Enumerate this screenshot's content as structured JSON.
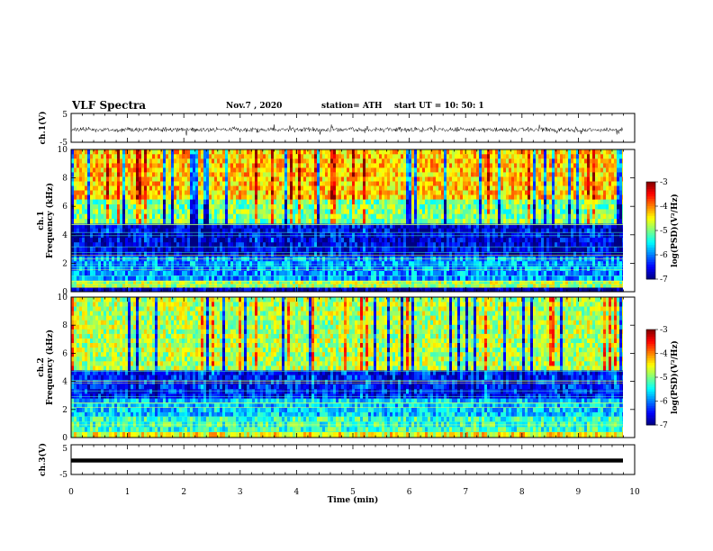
{
  "header": {
    "title": "VLF Spectra",
    "date": "Nov.7 , 2020",
    "station": "station= ATH",
    "start": "start UT = 10: 50: 1"
  },
  "chart_data": [
    {
      "type": "line",
      "panel": "ch1-waveform",
      "ylabel": "ch.1(V)",
      "ylim": [
        -5,
        5
      ],
      "yticks": [
        "5",
        "-5"
      ],
      "xlim": [
        0,
        10
      ],
      "description_values": {
        "baseline": 0,
        "noise_amplitude": 1.2,
        "end_min": 9.85
      }
    },
    {
      "type": "heatmap",
      "panel": "ch1-spectrogram",
      "ylabel": "ch.1\nFrequency (kHz)",
      "ylabel_lines": [
        "ch.1",
        "Frequency (kHz)"
      ],
      "ylim": [
        0,
        10
      ],
      "yticks": [
        "0",
        "2",
        "4",
        "6",
        "8",
        "10"
      ],
      "xlim": [
        0,
        9.85
      ],
      "colorbar": {
        "label": "log(PSD)(V²/Hz)",
        "range": [
          -7,
          -3
        ],
        "ticks": [
          "-3",
          "-4",
          "-5",
          "-6",
          "-7"
        ]
      },
      "bands_khz": [
        {
          "from": 0,
          "to": 0.3,
          "level": -6.8
        },
        {
          "from": 0.3,
          "to": 0.8,
          "level": -4.8
        },
        {
          "from": 0.8,
          "to": 2.5,
          "level": -5.9
        },
        {
          "from": 2.5,
          "to": 4.8,
          "level": -6.6
        },
        {
          "from": 4.8,
          "to": 6.5,
          "level": -5.0
        },
        {
          "from": 6.5,
          "to": 10,
          "level": -4.3
        }
      ]
    },
    {
      "type": "heatmap",
      "panel": "ch2-spectrogram",
      "ylabel_lines": [
        "ch.2",
        "Frequency (kHz)"
      ],
      "ylim": [
        0,
        10
      ],
      "yticks": [
        "0",
        "2",
        "4",
        "6",
        "8",
        "10"
      ],
      "xlim": [
        0,
        9.85
      ],
      "colorbar": {
        "label": "log(PSD)(V²/Hz)",
        "range": [
          -7,
          -3
        ],
        "ticks": [
          "-3",
          "-4",
          "-5",
          "-6",
          "-7"
        ]
      },
      "bands_khz": [
        {
          "from": 0,
          "to": 0.4,
          "level": -4.5
        },
        {
          "from": 0.4,
          "to": 1.5,
          "level": -5.3
        },
        {
          "from": 1.5,
          "to": 2.8,
          "level": -5.7
        },
        {
          "from": 2.8,
          "to": 4.8,
          "level": -6.4
        },
        {
          "from": 4.8,
          "to": 10,
          "level": -4.8
        }
      ]
    },
    {
      "type": "line",
      "panel": "ch3-waveform",
      "ylabel": "ch.3(V)",
      "ylim": [
        -5,
        5
      ],
      "yticks": [
        "5",
        "-5"
      ],
      "xlim": [
        0,
        10
      ],
      "description_values": {
        "baseline": 0,
        "noise_amplitude": 0.3,
        "end_min": 9.85
      }
    }
  ],
  "xaxis": {
    "label": "Time (min)",
    "ticks": [
      "0",
      "1",
      "2",
      "3",
      "4",
      "5",
      "6",
      "7",
      "8",
      "9",
      "10"
    ]
  }
}
